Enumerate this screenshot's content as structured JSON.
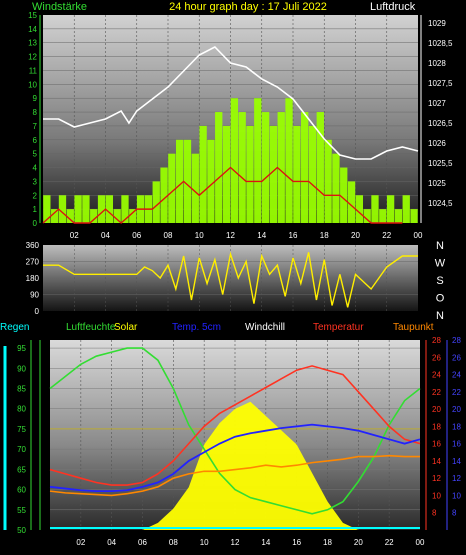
{
  "header": {
    "left_label": "Windstärke",
    "title": "24 hour graph day : 17 Juli 2022",
    "right_label": "Luftdruck"
  },
  "colors": {
    "wind": "#99ff00",
    "gust": "#00cc00",
    "pressure": "#ffffff",
    "direction": "#ffee00",
    "solar": "#ffff00",
    "humidity": "#33dd33",
    "temp5cm": "#2222ff",
    "temperature": "#ff3322",
    "dewpoint": "#ff8800",
    "regen": "#00ffff",
    "windchill": "#ffffff",
    "uv": "#aaaaaa"
  },
  "chart_data": [
    {
      "id": "wind-pressure",
      "type": "bar",
      "xlabel": "",
      "ylabel": "Windstärke",
      "xlim": [
        0,
        24
      ],
      "x_ticks": [
        "02",
        "04",
        "06",
        "08",
        "10",
        "12",
        "14",
        "16",
        "18",
        "20",
        "22",
        "00"
      ],
      "ylim": [
        0,
        15
      ],
      "y_ticks": [
        "0",
        "1",
        "2",
        "3",
        "4",
        "5",
        "6",
        "7",
        "8",
        "9",
        "10",
        "11",
        "12",
        "13",
        "14",
        "15"
      ],
      "y2lim": [
        1024,
        1029.2
      ],
      "y2_ticks": [
        "1024,5",
        "1025",
        "1025,5",
        "1026",
        "1026,5",
        "1027",
        "1027,5",
        "1028",
        "1028,5",
        "1029"
      ],
      "series": [
        {
          "name": "Windstärke",
          "x": [
            0,
            0.5,
            1,
            1.5,
            2,
            2.5,
            3,
            3.5,
            4,
            4.5,
            5,
            5.5,
            6,
            6.5,
            7,
            7.5,
            8,
            8.5,
            9,
            9.5,
            10,
            10.5,
            11,
            11.5,
            12,
            12.5,
            13,
            13.5,
            14,
            14.5,
            15,
            15.5,
            16,
            16.5,
            17,
            17.5,
            18,
            18.5,
            19,
            19.5,
            20,
            20.5,
            21,
            21.5,
            22,
            22.5,
            23,
            23.5
          ],
          "values": [
            2,
            1,
            2,
            1,
            2,
            2,
            1,
            2,
            2,
            1,
            2,
            1,
            2,
            2,
            3,
            4,
            5,
            6,
            6,
            5,
            7,
            6,
            8,
            7,
            9,
            8,
            7,
            9,
            8,
            7,
            8,
            9,
            7,
            8,
            7,
            8,
            6,
            5,
            4,
            3,
            2,
            1,
            2,
            1,
            2,
            1,
            2,
            1
          ]
        },
        {
          "name": "Windböe",
          "x": [
            0,
            1,
            2,
            3,
            4,
            5,
            6,
            7,
            8,
            9,
            10,
            11,
            12,
            13,
            14,
            15,
            16,
            17,
            18,
            19,
            20,
            21,
            22,
            23
          ],
          "values": [
            0,
            1,
            0,
            0,
            1,
            0,
            1,
            1,
            2,
            3,
            2,
            3,
            4,
            3,
            3,
            4,
            3,
            3,
            2,
            2,
            1,
            0,
            0,
            0
          ]
        },
        {
          "name": "Luftdruck",
          "x": [
            0,
            1,
            2,
            3,
            4,
            5,
            5.5,
            6,
            7,
            8,
            9,
            10,
            11,
            12,
            13,
            14,
            15,
            16,
            17,
            18,
            19,
            20,
            21,
            22,
            23,
            24
          ],
          "values": [
            1026.6,
            1026.6,
            1026.4,
            1026.5,
            1026.6,
            1026.8,
            1026.5,
            1026.8,
            1027.1,
            1027.4,
            1027.8,
            1028.2,
            1028.4,
            1028.0,
            1027.9,
            1027.6,
            1027.4,
            1027.1,
            1026.6,
            1026.1,
            1025.7,
            1025.6,
            1025.6,
            1025.8,
            1025.9,
            1025.8
          ]
        }
      ]
    },
    {
      "id": "wind-direction",
      "type": "line",
      "xlim": [
        0,
        24
      ],
      "ylim": [
        0,
        360
      ],
      "y_ticks": [
        "0",
        "90",
        "180",
        "270",
        "360"
      ],
      "compass_labels": [
        "N",
        "W",
        "S",
        "O",
        "N"
      ],
      "series": [
        {
          "name": "Windrichtung",
          "x": [
            0,
            1,
            2,
            3,
            4,
            5,
            6,
            6.5,
            7,
            7.5,
            8,
            8.5,
            9,
            9.5,
            10,
            10.5,
            11,
            11.5,
            12,
            12.5,
            13,
            13.5,
            14,
            14.5,
            15,
            15.5,
            16,
            16.5,
            17,
            17.5,
            18,
            18.5,
            19,
            19.5,
            20,
            21,
            22,
            23,
            24
          ],
          "values": [
            250,
            250,
            200,
            200,
            200,
            200,
            200,
            240,
            220,
            180,
            250,
            120,
            300,
            60,
            290,
            150,
            280,
            90,
            310,
            180,
            270,
            40,
            300,
            200,
            250,
            80,
            290,
            150,
            320,
            60,
            280,
            30,
            200,
            20,
            200,
            120,
            240,
            300,
            300
          ]
        }
      ]
    },
    {
      "id": "weather",
      "type": "line",
      "legend": [
        "Regen",
        "Luftfeuchte",
        "Solar",
        "Temp. 5cm",
        "Windchill",
        "Temperatur",
        "Taupunkt"
      ],
      "xlim": [
        0,
        24
      ],
      "x_ticks": [
        "02",
        "04",
        "06",
        "08",
        "10",
        "12",
        "14",
        "16",
        "18",
        "20",
        "22",
        "00"
      ],
      "ylim_left": [
        50,
        97
      ],
      "y_ticks_left": [
        "50",
        "55",
        "60",
        "65",
        "70",
        "75",
        "80",
        "85",
        "90",
        "95"
      ],
      "ylim_right_red": [
        6,
        28
      ],
      "y_ticks_right_red": [
        "8",
        "10",
        "12",
        "14",
        "16",
        "18",
        "20",
        "22",
        "24",
        "26",
        "28"
      ],
      "y_ticks_right_blue": [
        "8",
        "10",
        "12",
        "14",
        "16",
        "18",
        "20",
        "22",
        "24",
        "26",
        "28"
      ],
      "series": [
        {
          "name": "Luftfeuchte",
          "x": [
            0,
            1,
            2,
            3,
            4,
            5,
            6,
            7,
            8,
            9,
            10,
            11,
            12,
            13,
            14,
            15,
            16,
            17,
            18,
            19,
            20,
            21,
            22,
            23,
            24
          ],
          "values": [
            85,
            88,
            91,
            93,
            94,
            95,
            95,
            92,
            85,
            76,
            70,
            64,
            60,
            58,
            57,
            56,
            55,
            54,
            55,
            57,
            62,
            68,
            76,
            82,
            85
          ]
        },
        {
          "name": "Temperatur",
          "x": [
            0,
            1,
            2,
            3,
            4,
            5,
            6,
            7,
            8,
            9,
            10,
            11,
            12,
            13,
            14,
            15,
            16,
            17,
            18,
            19,
            20,
            21,
            22,
            23,
            24
          ],
          "values": [
            13,
            12.5,
            12,
            11.5,
            11.2,
            11.2,
            11.5,
            12.5,
            14,
            16,
            18,
            19.5,
            20.5,
            21.5,
            22.5,
            23.5,
            24.5,
            25,
            24.5,
            24,
            22,
            20,
            18,
            16.5,
            16
          ]
        },
        {
          "name": "Taupunkt",
          "x": [
            0,
            1,
            2,
            3,
            4,
            5,
            6,
            7,
            8,
            9,
            10,
            11,
            12,
            13,
            14,
            15,
            16,
            17,
            18,
            19,
            20,
            21,
            22,
            23,
            24
          ],
          "values": [
            10.5,
            10.3,
            10.2,
            10.1,
            10.0,
            10.2,
            10.5,
            11,
            12,
            12.5,
            12.8,
            12.8,
            13,
            13.2,
            13.5,
            13.3,
            13.5,
            13.8,
            14,
            14.2,
            14.5,
            14.5,
            14.6,
            14.5,
            14.5
          ]
        },
        {
          "name": "Temp. 5cm",
          "x": [
            0,
            1,
            2,
            3,
            4,
            5,
            6,
            7,
            8,
            9,
            10,
            11,
            12,
            13,
            14,
            15,
            16,
            17,
            18,
            19,
            20,
            21,
            22,
            23,
            24
          ],
          "values": [
            11,
            10.8,
            10.6,
            10.5,
            10.5,
            10.6,
            11,
            11.5,
            12.5,
            14,
            15,
            16,
            16.8,
            17.2,
            17.5,
            17.8,
            18,
            18.2,
            18,
            17.8,
            17.5,
            17,
            16.5,
            16,
            16.5
          ]
        },
        {
          "name": "Solar",
          "x": [
            6,
            7,
            8,
            9,
            10,
            11,
            12,
            13,
            14,
            15,
            16,
            17,
            18,
            19,
            20
          ],
          "values": [
            0,
            1,
            3,
            6,
            12,
            15,
            17,
            18,
            16,
            14,
            12,
            8,
            4,
            1,
            0
          ]
        }
      ]
    }
  ]
}
